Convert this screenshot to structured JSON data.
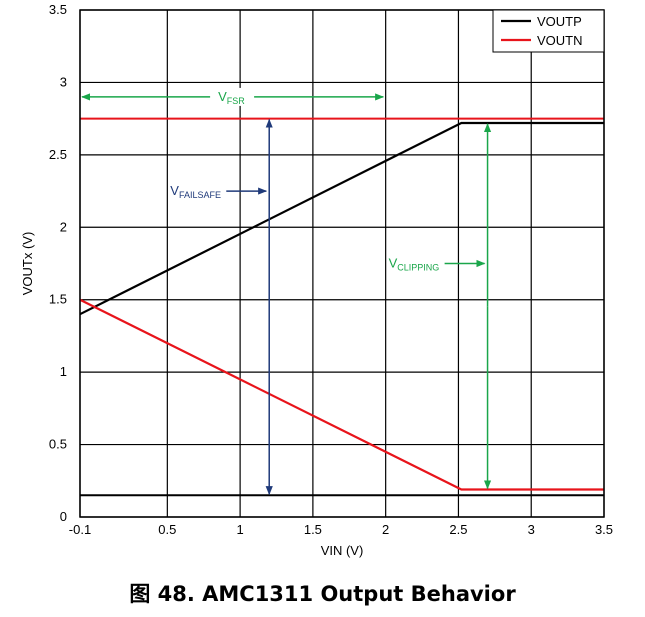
{
  "caption": "图 48.  AMC1311 Output Behavior",
  "chart_data": {
    "type": "line",
    "title": "",
    "xlabel": "VIN (V)",
    "ylabel": "VOUTx (V)",
    "xlim": [
      -0.1,
      3.5
    ],
    "ylim": [
      0,
      3.5
    ],
    "x_ticks": [
      -0.1,
      0.5,
      1,
      1.5,
      2,
      2.5,
      3,
      3.5
    ],
    "x_tick_labels": [
      "-0.1",
      "0.5",
      "1",
      "1.5",
      "2",
      "2.5",
      "3",
      "3.5"
    ],
    "y_ticks": [
      0,
      0.5,
      1,
      1.5,
      2,
      2.5,
      3,
      3.5
    ],
    "y_tick_labels": [
      "0",
      "0.5",
      "1",
      "1.5",
      "2",
      "2.5",
      "3",
      "3.5"
    ],
    "grid": true,
    "legend_position": "top-right",
    "series": [
      {
        "name": "VOUTP",
        "color": "#000000",
        "x": [
          -0.1,
          2.52,
          3.5
        ],
        "y": [
          1.4,
          2.72,
          2.72
        ]
      },
      {
        "name": "VOUTN",
        "color": "#e8141b",
        "x": [
          -0.1,
          2.52,
          3.5
        ],
        "y": [
          1.5,
          0.19,
          0.19
        ]
      }
    ],
    "reference_lines": [
      {
        "label": "VFAILSAFE high",
        "color": "#e8141b",
        "y": 2.75
      },
      {
        "label": "VFAILSAFE low",
        "color": "#000000",
        "y": 0.15
      }
    ],
    "annotations": [
      {
        "id": "vfsr",
        "label_main": "V",
        "label_sub": "FSR",
        "color": "#1aa64a",
        "x_from": -0.1,
        "x_to": 1.99,
        "y": 2.9
      },
      {
        "id": "vfailsafe",
        "label_main": "V",
        "label_sub": "FAILSAFE",
        "color": "#1f3a7a",
        "x": 1.2,
        "y_from": 0.15,
        "y_to": 2.75,
        "label_x": 0.85,
        "label_y": 2.25
      },
      {
        "id": "vclipping",
        "label_main": "V",
        "label_sub": "CLIPPING",
        "color": "#1aa64a",
        "x": 2.7,
        "y_from": 0.19,
        "y_to": 2.72,
        "label_x": 2.35,
        "label_y": 1.75
      }
    ]
  }
}
